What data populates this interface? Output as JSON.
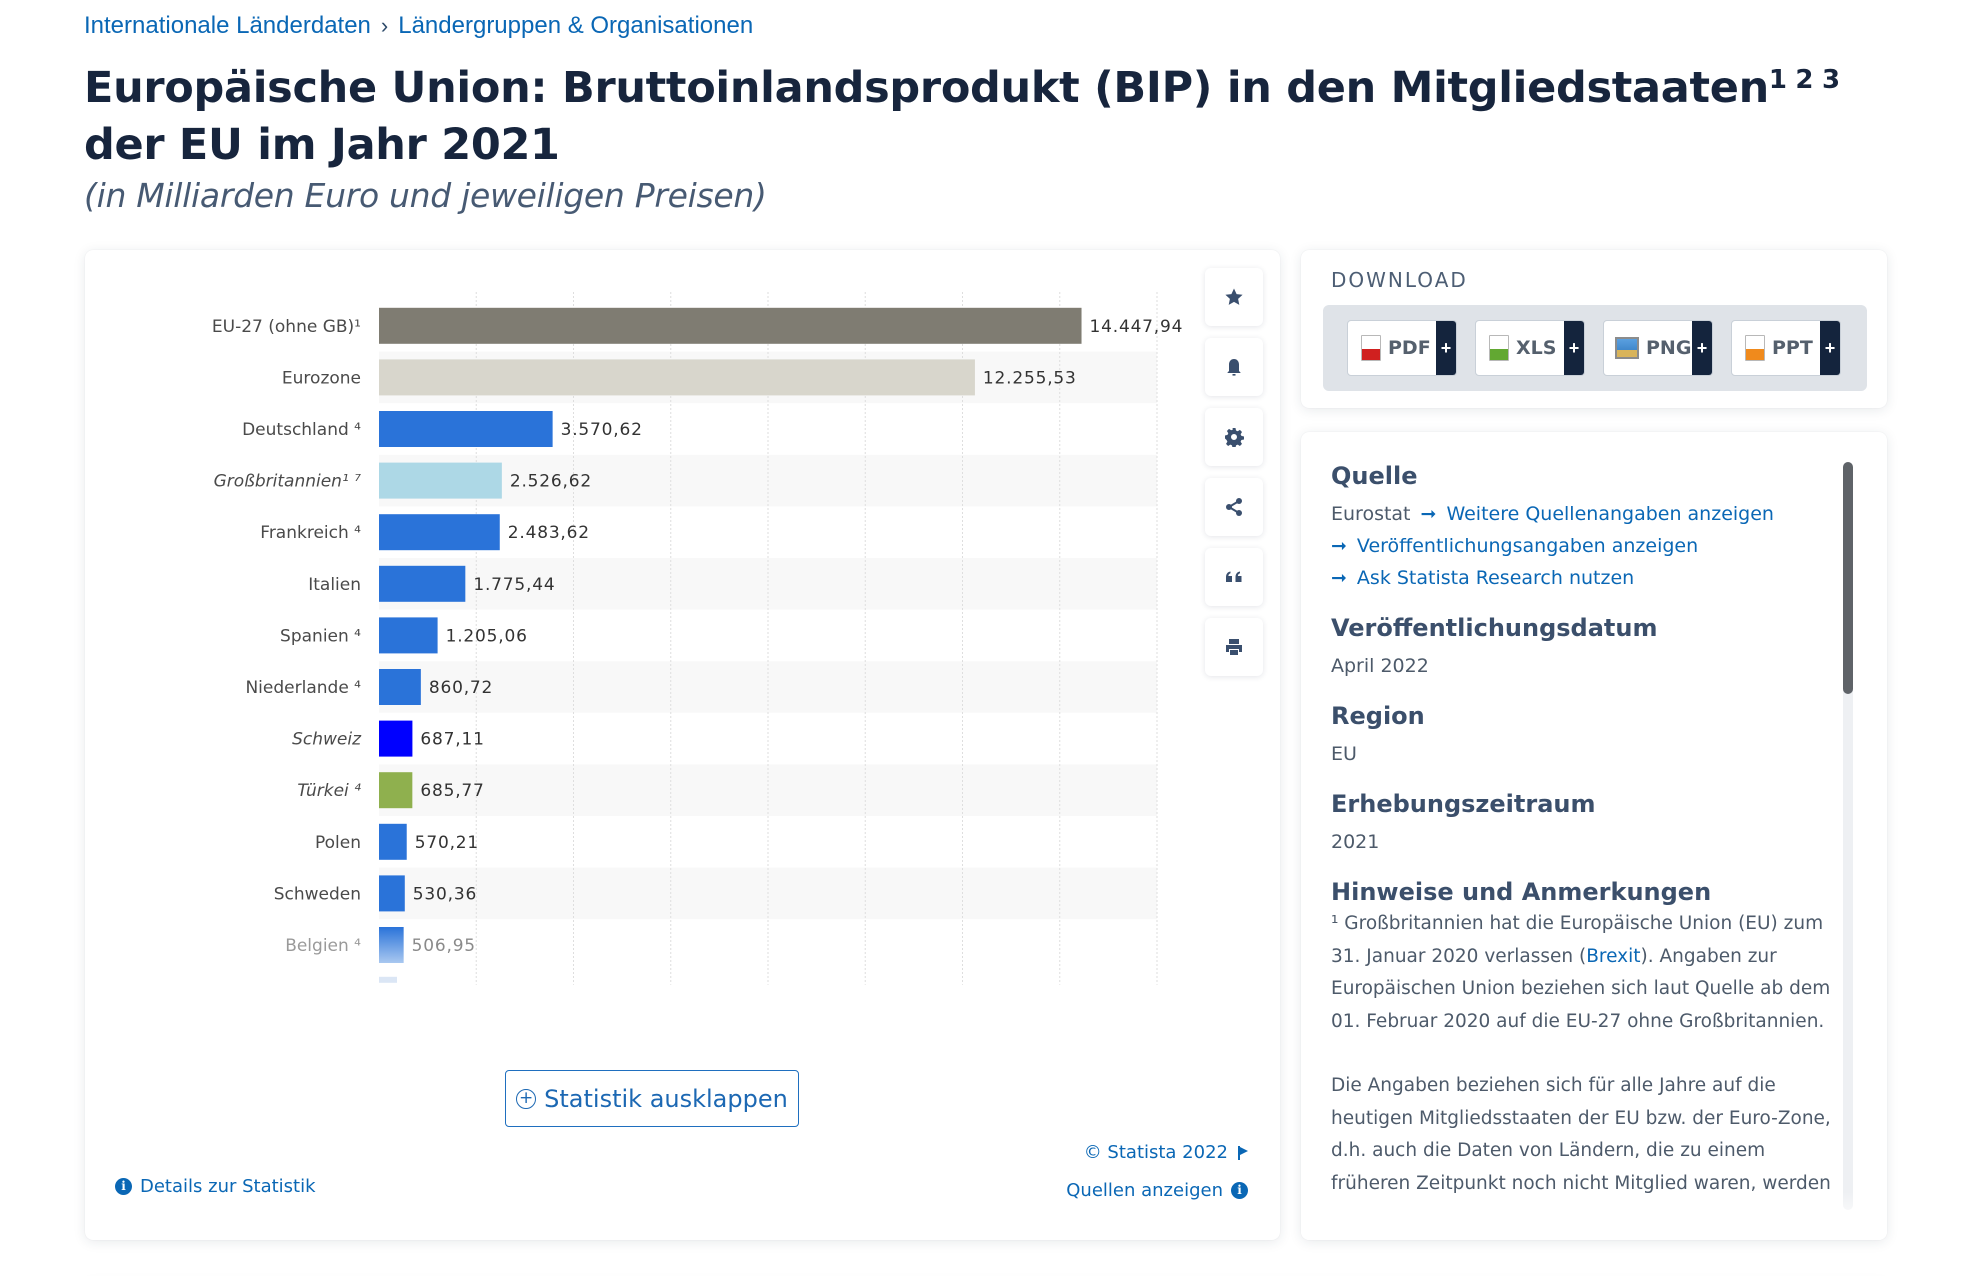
{
  "breadcrumb": {
    "items": [
      "Internationale Länderdaten",
      "Ländergruppen & Organisationen"
    ],
    "separator": "›"
  },
  "header": {
    "title_part1": "Europäische Union: Bruttoinlandsprodukt (BIP) in den Mitgliedstaaten",
    "title_sup": "1 2 3",
    "title_part2": " der EU im Jahr 2021",
    "subtitle": "(in Milliarden Euro und jeweiligen Preisen)"
  },
  "actions": [
    {
      "name": "favorite",
      "icon": "star-icon"
    },
    {
      "name": "notification",
      "icon": "bell-icon"
    },
    {
      "name": "settings",
      "icon": "gear-icon"
    },
    {
      "name": "share",
      "icon": "share-icon"
    },
    {
      "name": "cite",
      "icon": "quote-icon"
    },
    {
      "name": "print",
      "icon": "printer-icon"
    }
  ],
  "chart_data": {
    "type": "bar",
    "orientation": "horizontal",
    "title": "Europäische Union: Bruttoinlandsprodukt (BIP) in den Mitgliedstaaten der EU im Jahr 2021",
    "subtitle": "(in Milliarden Euro und jeweiligen Preisen)",
    "xlabel": "",
    "ylabel": "",
    "xlim": [
      0,
      16000
    ],
    "grid_step": 2000,
    "grid": true,
    "categories": [
      "EU-27 (ohne GB)¹",
      "Eurozone",
      "Deutschland ⁴",
      "Großbritannien¹ ⁷",
      "Frankreich ⁴",
      "Italien",
      "Spanien ⁴",
      "Niederlande ⁴",
      "Schweiz",
      "Türkei ⁴",
      "Polen",
      "Schweden",
      "Belgien ⁴"
    ],
    "values": [
      14447.94,
      12255.53,
      3570.62,
      2526.62,
      2483.62,
      1775.44,
      1205.06,
      860.72,
      687.11,
      685.77,
      570.21,
      530.36,
      506.95
    ],
    "value_labels": [
      "14.447,94",
      "12.255,53",
      "3.570,62",
      "2.526,62",
      "2.483,62",
      "1.775,44",
      "1.205,06",
      "860,72",
      "687,11",
      "685,77",
      "570,21",
      "530,36",
      "506,95"
    ],
    "italic": [
      false,
      false,
      false,
      true,
      false,
      false,
      false,
      false,
      true,
      true,
      false,
      false,
      false
    ],
    "colors": [
      "#7f7c72",
      "#d8d6cc",
      "#2a73d9",
      "#add8e6",
      "#2a73d9",
      "#2a73d9",
      "#2a73d9",
      "#2a73d9",
      "#0000ff",
      "#8fb04e",
      "#2a73d9",
      "#2a73d9",
      "#2a73d9"
    ],
    "truncated": true
  },
  "chart_footer": {
    "expand_label": "Statistik ausklappen",
    "copyright": "© Statista 2022",
    "details_label": "Details zur Statistik",
    "sources_label": "Quellen anzeigen"
  },
  "download": {
    "title": "DOWNLOAD",
    "buttons": [
      {
        "label": "PDF",
        "icon": "pdf-file-icon",
        "color": "#d0201f"
      },
      {
        "label": "XLS",
        "icon": "xls-file-icon",
        "color": "#62a832"
      },
      {
        "label": "PNG",
        "icon": "png-image-icon",
        "color": "#4188cc"
      },
      {
        "label": "PPT",
        "icon": "ppt-file-icon",
        "color": "#f08a1c"
      }
    ],
    "plus": "+"
  },
  "info": {
    "source_heading": "Quelle",
    "source_name": "Eurostat",
    "source_more_link": "Weitere Quellenangaben anzeigen",
    "publication_link": "Veröffentlichungsangaben anzeigen",
    "research_link": "Ask Statista Research nutzen",
    "pubdate_heading": "Veröffentlichungsdatum",
    "pubdate_value": "April 2022",
    "region_heading": "Region",
    "region_value": "EU",
    "period_heading": "Erhebungszeitraum",
    "period_value": "2021",
    "notes_heading": "Hinweise und Anmerkungen",
    "note1_prefix": "¹ Großbritannien hat die Europäische Union (EU) zum 31. Januar 2020 verlassen (",
    "note1_link": "Brexit",
    "note1_suffix": "). Angaben zur Europäischen Union beziehen sich laut Quelle ab dem 01. Februar 2020 auf die EU-27 ohne Großbritannien.",
    "note2": "Die Angaben beziehen sich für alle Jahre auf die heutigen Mitgliedsstaaten der EU bzw. der Euro-Zone, d.h. auch die Daten von Ländern, die zu einem früheren Zeitpunkt noch nicht Mitglied waren, werden"
  }
}
